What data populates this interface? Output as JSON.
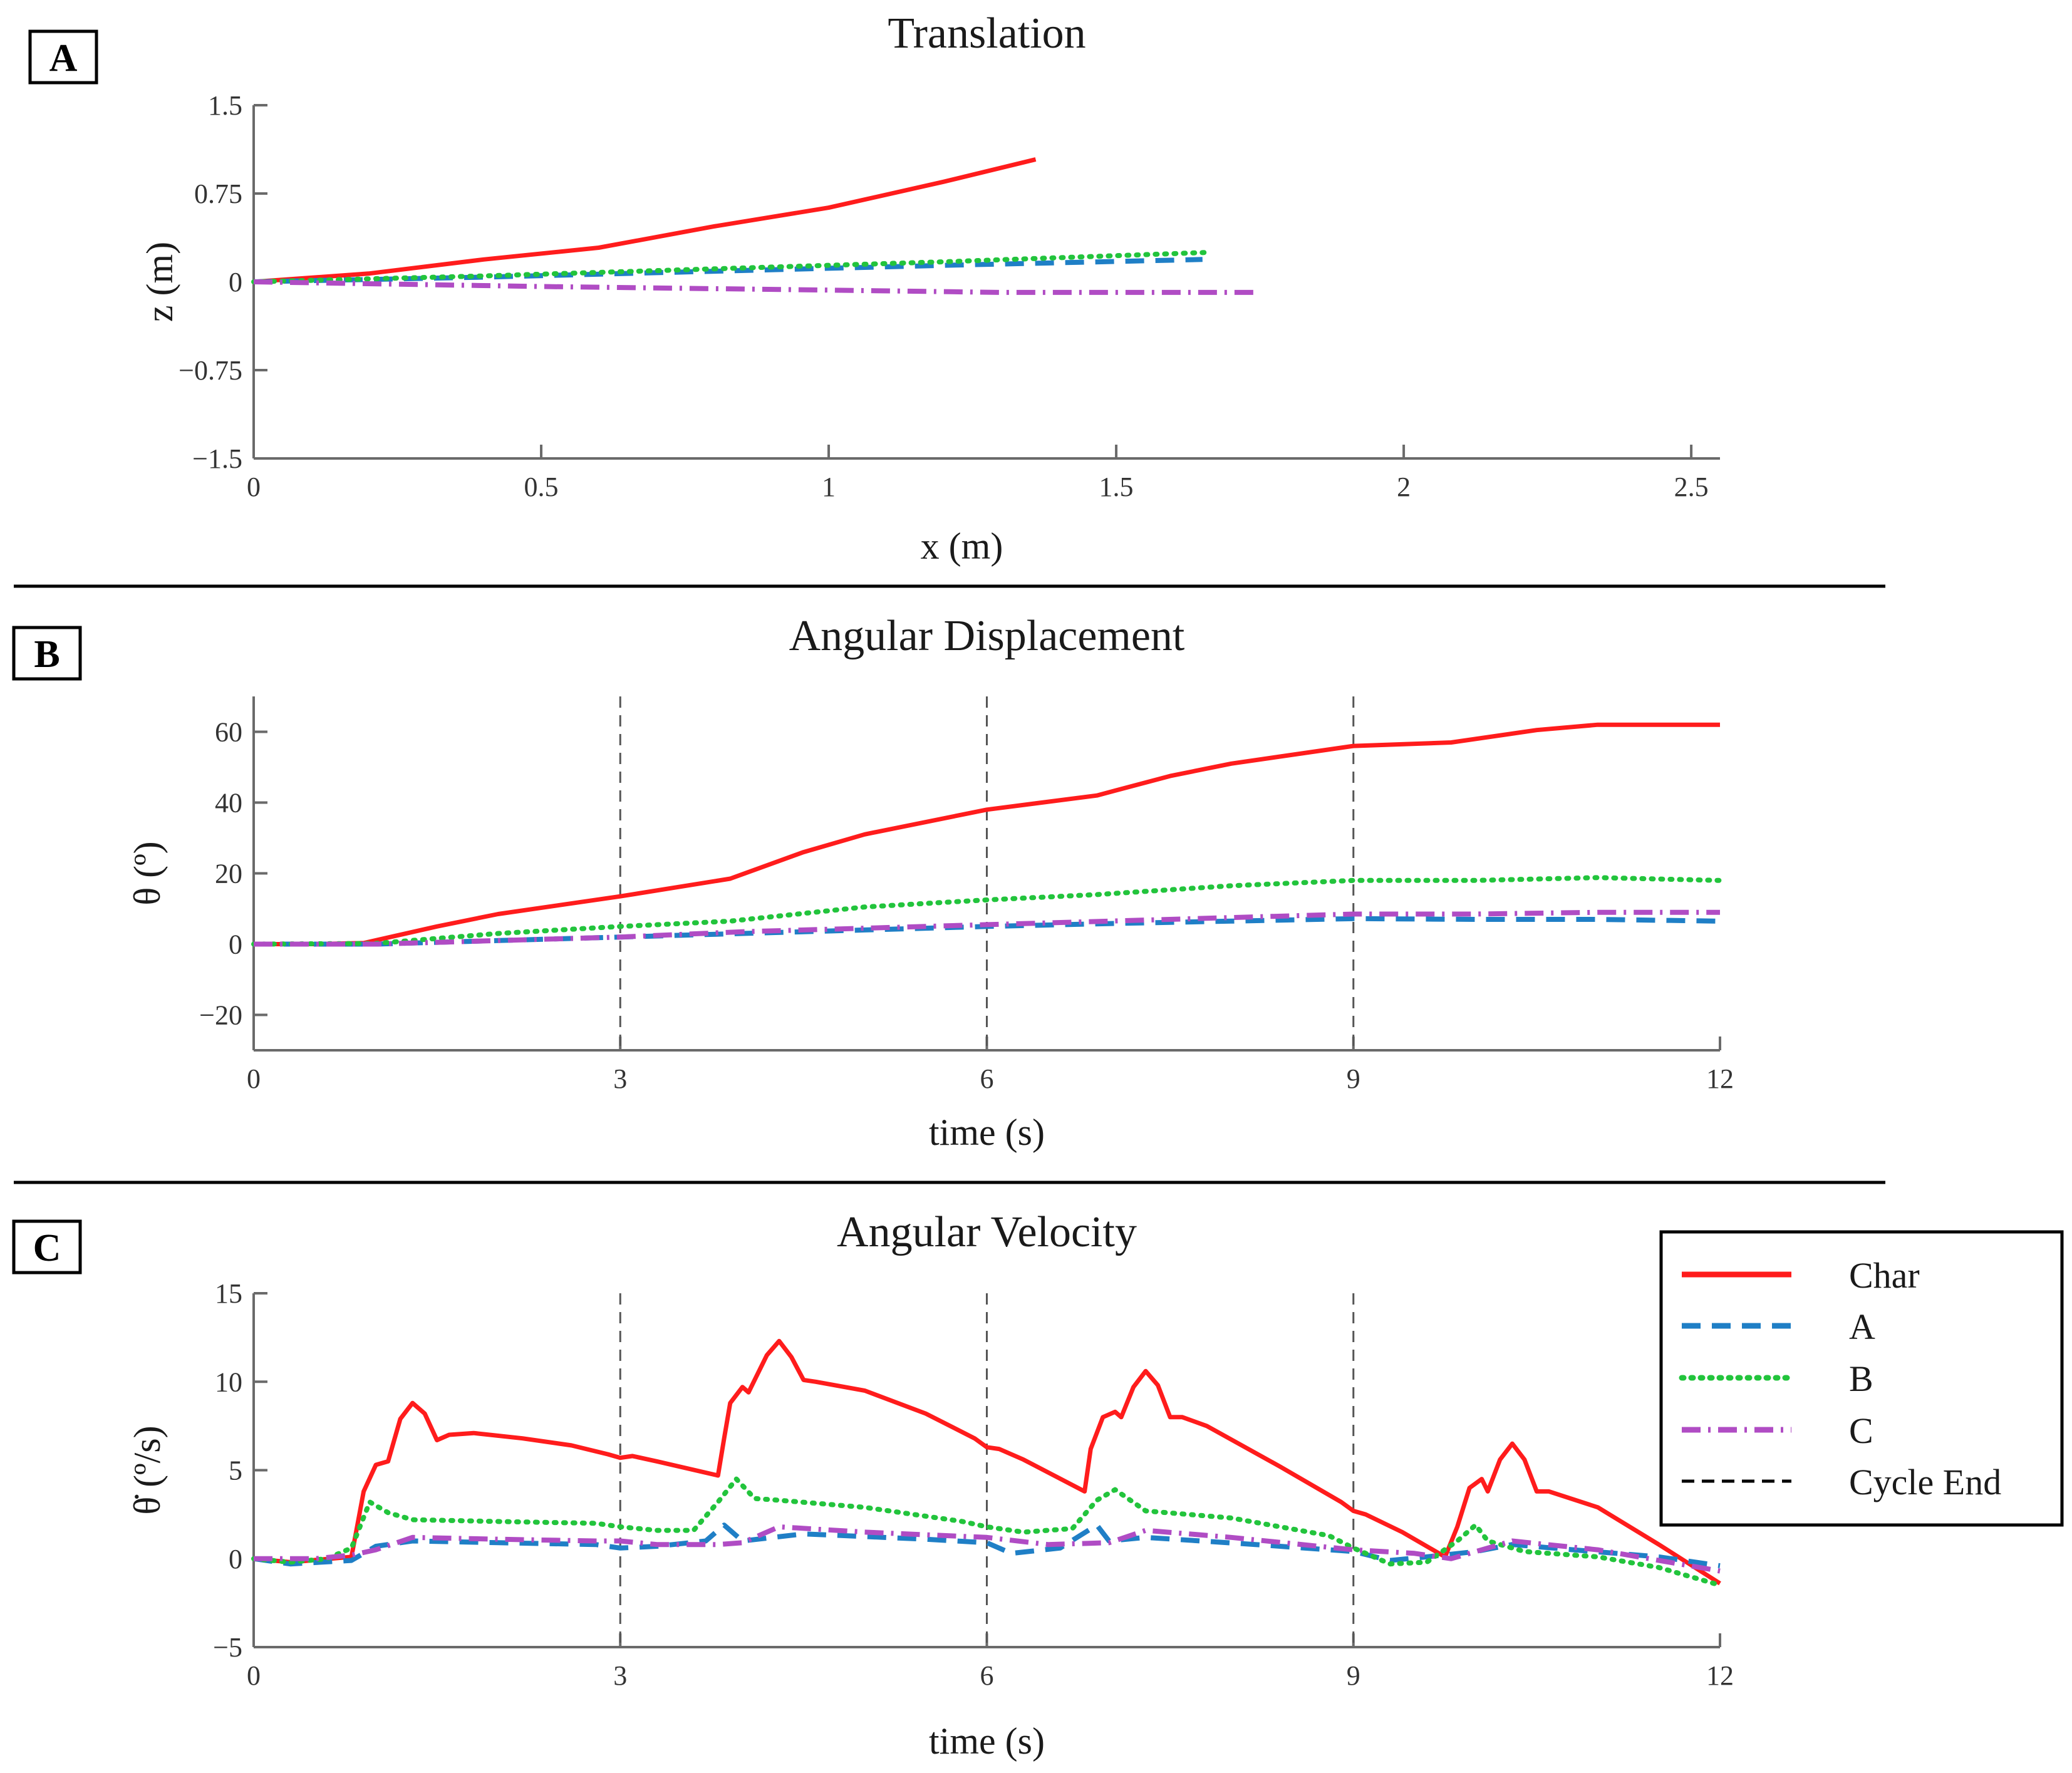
{
  "panels": [
    "A",
    "B",
    "C"
  ],
  "legend": {
    "entries": [
      "Char",
      "A",
      "B",
      "C",
      "Cycle End"
    ]
  },
  "colors": {
    "char": "#ff1c1c",
    "a": "#1f7fc6",
    "b": "#22c43c",
    "c": "#b04cc4",
    "cycle": "#555555",
    "axis": "#6a6a6a",
    "text": "#1a1a1a"
  },
  "chart_data": [
    {
      "panel": "A",
      "type": "line",
      "title": "Translation",
      "xlabel": "x (m)",
      "ylabel": "z (m)",
      "xlim": [
        0,
        2.55
      ],
      "ylim": [
        -1.5,
        1.5
      ],
      "xticks": [
        0,
        0.5,
        1,
        1.5,
        2,
        2.5
      ],
      "xtick_labels": [
        "0",
        "0.5",
        "1",
        "1.5",
        "2",
        "2.5"
      ],
      "yticks": [
        -1.5,
        -0.75,
        0,
        0.75,
        1.5
      ],
      "ytick_labels": [
        "−1.5",
        "−0.75",
        "0",
        "0.75",
        "1.5"
      ],
      "series": [
        {
          "name": "Char",
          "x": [
            0,
            0.2,
            0.4,
            0.6,
            0.8,
            1.0,
            1.2,
            1.36
          ],
          "y": [
            0,
            0.07,
            0.19,
            0.29,
            0.47,
            0.63,
            0.85,
            1.04
          ]
        },
        {
          "name": "A",
          "x": [
            0,
            0.4,
            0.8,
            1.2,
            1.65
          ],
          "y": [
            0,
            0.04,
            0.09,
            0.14,
            0.19
          ]
        },
        {
          "name": "B",
          "x": [
            0,
            0.4,
            0.8,
            1.2,
            1.66
          ],
          "y": [
            0,
            0.05,
            0.11,
            0.17,
            0.25
          ]
        },
        {
          "name": "C",
          "x": [
            0,
            0.5,
            1.0,
            1.3,
            1.74
          ],
          "y": [
            0,
            -0.04,
            -0.07,
            -0.09,
            -0.09
          ]
        }
      ]
    },
    {
      "panel": "B",
      "type": "line",
      "title": "Angular Displacement",
      "xlabel": "time (s)",
      "ylabel": "θ (º)",
      "xlim": [
        0,
        12
      ],
      "ylim": [
        -30,
        70
      ],
      "xticks": [
        0,
        3,
        6,
        9,
        12
      ],
      "xtick_labels": [
        "0",
        "3",
        "6",
        "9",
        "12"
      ],
      "yticks": [
        -20,
        0,
        20,
        40,
        60
      ],
      "ytick_labels": [
        "−20",
        "0",
        "20",
        "40",
        "60"
      ],
      "cycle_ends": [
        3,
        6,
        9
      ],
      "series": [
        {
          "name": "Char",
          "x": [
            0,
            0.5,
            0.9,
            1.5,
            2.0,
            3.0,
            3.9,
            4.5,
            5.0,
            6.0,
            6.9,
            7.5,
            8.0,
            9.0,
            9.8,
            10.5,
            11.0,
            12.0
          ],
          "y": [
            0,
            0,
            0.3,
            5,
            8.5,
            13.5,
            18.5,
            26,
            31,
            38,
            42,
            47.5,
            51,
            56,
            57,
            60.5,
            62,
            62
          ]
        },
        {
          "name": "A",
          "x": [
            0,
            1.0,
            2.0,
            3.0,
            4.0,
            5.0,
            6.0,
            7.0,
            8.0,
            9.0,
            10.0,
            11.0,
            12.0
          ],
          "y": [
            0,
            0,
            1,
            2,
            3,
            4,
            5,
            5.8,
            6.5,
            7.2,
            7,
            7,
            6.5
          ]
        },
        {
          "name": "B",
          "x": [
            0,
            1.0,
            2.0,
            3.0,
            3.9,
            5.0,
            6.0,
            6.9,
            8.0,
            9.0,
            10.0,
            11.0,
            12.0
          ],
          "y": [
            0,
            0.2,
            3,
            5,
            6.5,
            10.5,
            12.5,
            14,
            16.5,
            18,
            18,
            18.8,
            18
          ]
        },
        {
          "name": "C",
          "x": [
            0,
            1.0,
            2.0,
            3.0,
            4.0,
            5.0,
            6.0,
            7.0,
            8.0,
            9.0,
            10.0,
            11.0,
            12.0
          ],
          "y": [
            0,
            0,
            1,
            2,
            3.5,
            4.5,
            5.5,
            6.5,
            7.5,
            8.5,
            8.5,
            9,
            9
          ]
        }
      ]
    },
    {
      "panel": "C",
      "type": "line",
      "title": "Angular Velocity",
      "xlabel": "time (s)",
      "ylabel": "θ̇ (º/s)",
      "xlim": [
        0,
        12
      ],
      "ylim": [
        -5,
        15
      ],
      "xticks": [
        0,
        3,
        6,
        9,
        12
      ],
      "xtick_labels": [
        "0",
        "3",
        "6",
        "9",
        "12"
      ],
      "yticks": [
        -5,
        0,
        5,
        10,
        15
      ],
      "ytick_labels": [
        "−5",
        "0",
        "5",
        "10",
        "15"
      ],
      "cycle_ends": [
        3,
        6,
        9
      ],
      "series": [
        {
          "name": "Char",
          "x": [
            0,
            0.3,
            0.8,
            0.9,
            1.0,
            1.1,
            1.2,
            1.3,
            1.4,
            1.5,
            1.6,
            1.8,
            2.2,
            2.6,
            2.9,
            3.0,
            3.1,
            3.3,
            3.8,
            3.85,
            3.9,
            4.0,
            4.05,
            4.1,
            4.2,
            4.3,
            4.4,
            4.5,
            4.6,
            5.0,
            5.5,
            5.9,
            6.0,
            6.1,
            6.3,
            6.8,
            6.85,
            6.95,
            7.05,
            7.1,
            7.2,
            7.3,
            7.4,
            7.5,
            7.6,
            7.8,
            8.4,
            8.9,
            9.0,
            9.1,
            9.4,
            9.75,
            9.85,
            9.95,
            10.05,
            10.1,
            10.2,
            10.3,
            10.4,
            10.5,
            10.6,
            11.0,
            11.5,
            12.0
          ],
          "y": [
            0,
            -0.2,
            0.1,
            3.8,
            5.3,
            5.5,
            7.9,
            8.8,
            8.2,
            6.7,
            7.0,
            7.1,
            6.8,
            6.4,
            5.9,
            5.7,
            5.8,
            5.5,
            4.7,
            6.8,
            8.8,
            9.7,
            9.4,
            10.1,
            11.5,
            12.3,
            11.4,
            10.1,
            10.0,
            9.5,
            8.2,
            6.8,
            6.3,
            6.2,
            5.6,
            3.8,
            6.2,
            8.0,
            8.3,
            8.0,
            9.7,
            10.6,
            9.8,
            8.0,
            8.0,
            7.5,
            5.2,
            3.2,
            2.7,
            2.5,
            1.5,
            0.1,
            1.8,
            4.0,
            4.5,
            3.8,
            5.6,
            6.5,
            5.6,
            3.8,
            3.8,
            2.9,
            0.8,
            -1.4
          ]
        },
        {
          "name": "A",
          "x": [
            0,
            0.3,
            0.8,
            1.0,
            1.3,
            2.0,
            2.8,
            3.0,
            3.3,
            3.7,
            3.85,
            4.0,
            4.5,
            5.5,
            6.0,
            6.2,
            6.6,
            6.9,
            7.0,
            7.3,
            8.2,
            9.0,
            9.3,
            9.6,
            10.0,
            10.3,
            10.8,
            11.5,
            12.0
          ],
          "y": [
            0,
            -0.3,
            -0.1,
            0.7,
            1.0,
            0.9,
            0.8,
            0.6,
            0.7,
            1.0,
            1.9,
            1.0,
            1.4,
            1.1,
            0.9,
            0.3,
            0.6,
            1.9,
            1.0,
            1.2,
            0.8,
            0.4,
            -0.1,
            0.1,
            0.4,
            0.8,
            0.5,
            0.1,
            -0.4
          ]
        },
        {
          "name": "B",
          "x": [
            0,
            0.3,
            0.6,
            0.8,
            0.95,
            1.1,
            1.3,
            2.0,
            2.8,
            3.0,
            3.3,
            3.6,
            3.8,
            3.95,
            4.1,
            4.3,
            5.0,
            5.8,
            6.0,
            6.3,
            6.7,
            6.9,
            7.05,
            7.3,
            8.0,
            8.8,
            9.0,
            9.3,
            9.6,
            9.85,
            10.0,
            10.1,
            10.4,
            11.0,
            11.5,
            12.0
          ],
          "y": [
            0,
            -0.2,
            0,
            0.6,
            3.2,
            2.6,
            2.2,
            2.1,
            2.0,
            1.8,
            1.6,
            1.6,
            3.2,
            4.5,
            3.4,
            3.3,
            2.9,
            2.1,
            1.8,
            1.5,
            1.7,
            3.3,
            3.9,
            2.7,
            2.3,
            1.3,
            0.6,
            -0.3,
            -0.2,
            1.0,
            1.9,
            1.0,
            0.4,
            0.1,
            -0.5,
            -1.5
          ]
        },
        {
          "name": "C",
          "x": [
            0,
            0.5,
            0.8,
            1.0,
            1.3,
            2.0,
            2.8,
            3.0,
            3.3,
            3.8,
            4.0,
            4.3,
            5.0,
            6.0,
            6.5,
            7.0,
            7.3,
            8.0,
            9.0,
            9.5,
            9.8,
            10.3,
            11.0,
            12.0
          ],
          "y": [
            0,
            0,
            0.2,
            0.5,
            1.2,
            1.1,
            1.0,
            1.0,
            0.8,
            0.8,
            0.9,
            1.8,
            1.5,
            1.2,
            0.8,
            0.9,
            1.6,
            1.2,
            0.5,
            0.3,
            0,
            1.0,
            0.5,
            -0.7
          ]
        }
      ]
    }
  ]
}
